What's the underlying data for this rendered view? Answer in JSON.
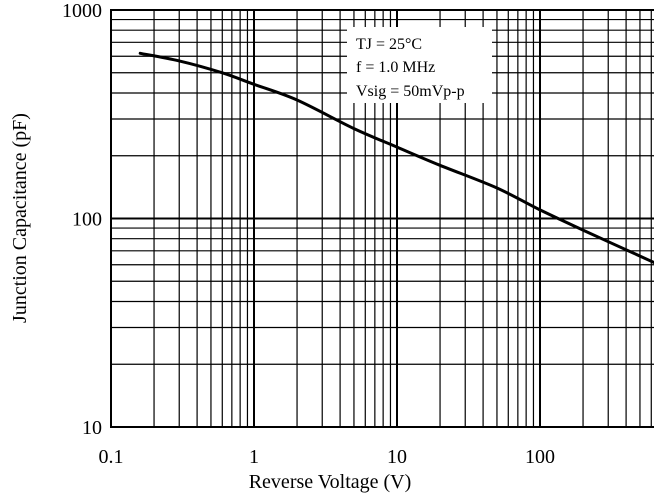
{
  "chart_data": {
    "type": "line",
    "title": "",
    "xlabel": "Reverse Voltage (V)",
    "ylabel": "Junction Capacitance (pF)",
    "x_scale": "log",
    "y_scale": "log",
    "xlim": [
      0.1,
      1000
    ],
    "ylim": [
      10,
      1000
    ],
    "x_ticks": [
      0.1,
      1,
      10,
      100
    ],
    "x_tick_labels": [
      "0.1",
      "1",
      "10",
      "100"
    ],
    "y_ticks": [
      10,
      100,
      1000
    ],
    "y_tick_labels": [
      "10",
      "100",
      "1000"
    ],
    "grid": true,
    "legend": "none",
    "annotations": [
      "TJ = 25°C",
      "f = 1.0 MHz",
      "Vsig = 50mVp-p"
    ],
    "series": [
      {
        "x": [
          0.16,
          0.3,
          0.6,
          1,
          2,
          5,
          10,
          20,
          50,
          100,
          200,
          500,
          800
        ],
        "y": [
          620,
          570,
          500,
          440,
          370,
          270,
          220,
          180,
          140,
          110,
          88,
          66,
          57
        ]
      }
    ]
  }
}
